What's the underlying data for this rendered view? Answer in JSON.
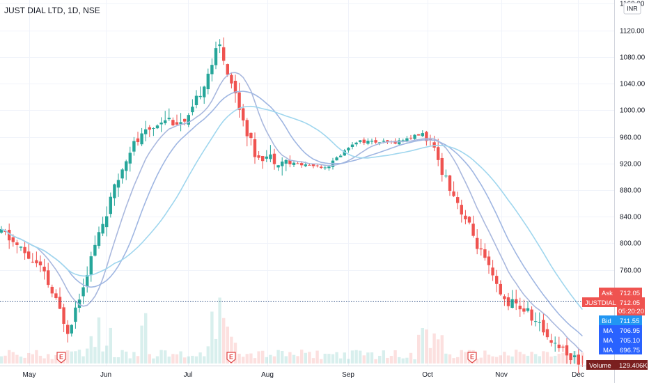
{
  "symbol_header": "JUST DIAL LTD, 1D, NSE",
  "currency_label": "INR",
  "colors": {
    "up": "#26a69a",
    "down": "#ef5350",
    "ma_fast": "#a9b8de",
    "ma_mid": "#9fb6e2",
    "ma_slow": "#9fd6ee",
    "ask_tag": "#ef5350",
    "bid_tag": "#2196f3",
    "ma_tag": "#2962ff",
    "volume_tag": "#7a1f1f",
    "price_line": "#2b4b80",
    "grid": "#f0f3fa"
  },
  "price_scale": {
    "ticks": [
      "1160.00",
      "1120.00",
      "1080.00",
      "1040.00",
      "1000.00",
      "960.00",
      "920.00",
      "880.00",
      "840.00",
      "800.00",
      "760.00"
    ]
  },
  "time_axis": {
    "labels": [
      "May",
      "Jun",
      "Jul",
      "Aug",
      "Sep",
      "Oct",
      "Nov",
      "Dec"
    ]
  },
  "tags": {
    "ask_label": "Ask",
    "ask_value": "712.05",
    "symbol_label": "JUSTDIAL",
    "last_value": "712.05",
    "countdown": "05:20:20",
    "bid_label": "Bid",
    "bid_value": "711.55",
    "ma_label": "MA",
    "ma_values": [
      "706.95",
      "705.10",
      "696.75"
    ],
    "volume_label": "Volume",
    "volume_value": "129.406K"
  },
  "earnings_marker": "E",
  "chart_data": {
    "type": "candlestick",
    "title": "JUST DIAL LTD, 1D, NSE",
    "ylim": [
      700,
      1160
    ],
    "y_ticks": [
      760,
      800,
      840,
      880,
      920,
      960,
      1000,
      1040,
      1080,
      1120,
      1160
    ],
    "x_labels": [
      "May",
      "Jun",
      "Jul",
      "Aug",
      "Sep",
      "Oct",
      "Nov",
      "Dec"
    ],
    "last_price": 712.05,
    "ask": 712.05,
    "bid": 711.55,
    "moving_averages": [
      706.95,
      705.1,
      696.75
    ],
    "volume_last": "129.406K",
    "earnings_events": [
      "late May",
      "mid Jul",
      "early Oct"
    ],
    "close_path": [
      {
        "date": "late Apr",
        "close": 875
      },
      {
        "date": "mid May",
        "close": 830
      },
      {
        "date": "late May",
        "close": 755
      },
      {
        "date": "early Jun",
        "close": 870
      },
      {
        "date": "mid Jun",
        "close": 980
      },
      {
        "date": "late Jun",
        "close": 1020
      },
      {
        "date": "early Jul",
        "close": 1010
      },
      {
        "date": "mid Jul",
        "close": 1110
      },
      {
        "date": "late Jul",
        "close": 975
      },
      {
        "date": "mid Aug",
        "close": 962
      },
      {
        "date": "late Aug",
        "close": 958
      },
      {
        "date": "early Sep",
        "close": 990
      },
      {
        "date": "late Sep",
        "close": 988
      },
      {
        "date": "early Oct",
        "close": 1000
      },
      {
        "date": "mid Oct",
        "close": 900
      },
      {
        "date": "early Nov",
        "close": 795
      },
      {
        "date": "mid Nov",
        "close": 780
      },
      {
        "date": "late Nov",
        "close": 745
      },
      {
        "date": "early Dec",
        "close": 712
      }
    ]
  }
}
